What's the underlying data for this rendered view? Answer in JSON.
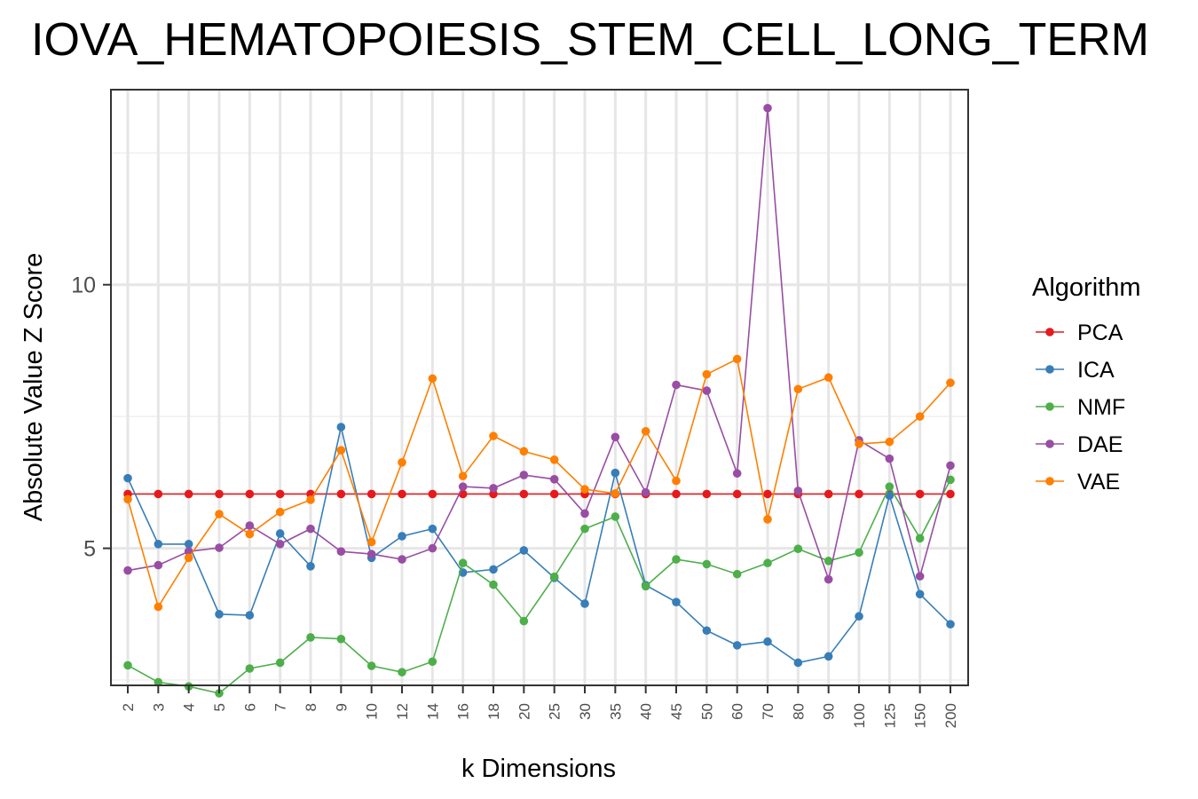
{
  "chart_data": {
    "type": "line",
    "title": "IOVA_HEMATOPOIESIS_STEM_CELL_LONG_TERM",
    "xlabel": "k Dimensions",
    "ylabel": "Absolute Value Z Score",
    "categories": [
      "2",
      "3",
      "4",
      "5",
      "6",
      "7",
      "8",
      "9",
      "10",
      "12",
      "14",
      "16",
      "18",
      "20",
      "25",
      "30",
      "35",
      "40",
      "45",
      "50",
      "60",
      "70",
      "80",
      "90",
      "100",
      "125",
      "150",
      "200"
    ],
    "ylim": [
      2.4,
      13.7
    ],
    "yticks": [
      5,
      10
    ],
    "grid": true,
    "legend": {
      "title": "Algorithm",
      "placement": "right"
    },
    "series": [
      {
        "name": "PCA",
        "color": "#e41a1c",
        "values": [
          6.03,
          6.03,
          6.03,
          6.03,
          6.03,
          6.03,
          6.03,
          6.03,
          6.03,
          6.03,
          6.03,
          6.03,
          6.03,
          6.03,
          6.03,
          6.03,
          6.03,
          6.03,
          6.03,
          6.03,
          6.03,
          6.03,
          6.03,
          6.03,
          6.03,
          6.03,
          6.03,
          6.03
        ]
      },
      {
        "name": "ICA",
        "color": "#377eb8",
        "values": [
          6.33,
          5.08,
          5.08,
          3.75,
          3.73,
          5.28,
          4.66,
          7.3,
          4.82,
          5.23,
          5.37,
          4.54,
          4.6,
          4.96,
          4.44,
          3.95,
          6.43,
          4.3,
          3.98,
          3.44,
          3.16,
          3.23,
          2.83,
          2.95,
          3.71,
          6.0,
          4.13,
          3.56
        ]
      },
      {
        "name": "NMF",
        "color": "#4daf4a",
        "values": [
          2.78,
          2.46,
          2.38,
          2.25,
          2.72,
          2.83,
          3.31,
          3.28,
          2.77,
          2.65,
          2.85,
          4.72,
          4.31,
          3.62,
          4.46,
          5.37,
          5.6,
          4.28,
          4.79,
          4.7,
          4.51,
          4.72,
          4.99,
          4.76,
          4.92,
          6.17,
          5.19,
          6.3
        ]
      },
      {
        "name": "DAE",
        "color": "#984ea3",
        "values": [
          4.58,
          4.68,
          4.94,
          5.01,
          5.43,
          5.08,
          5.37,
          4.94,
          4.89,
          4.79,
          5.0,
          6.17,
          6.14,
          6.39,
          6.31,
          5.66,
          7.11,
          6.06,
          8.1,
          7.99,
          6.42,
          13.35,
          6.09,
          4.41,
          7.05,
          6.7,
          4.47,
          6.57
        ]
      },
      {
        "name": "VAE",
        "color": "#ff7f00",
        "values": [
          5.93,
          3.89,
          4.82,
          5.65,
          5.27,
          5.69,
          5.92,
          6.86,
          5.12,
          6.63,
          8.22,
          6.37,
          7.13,
          6.84,
          6.68,
          6.12,
          6.04,
          7.22,
          6.28,
          8.3,
          8.59,
          5.55,
          8.02,
          8.24,
          6.98,
          7.02,
          7.5,
          8.14
        ]
      }
    ]
  }
}
